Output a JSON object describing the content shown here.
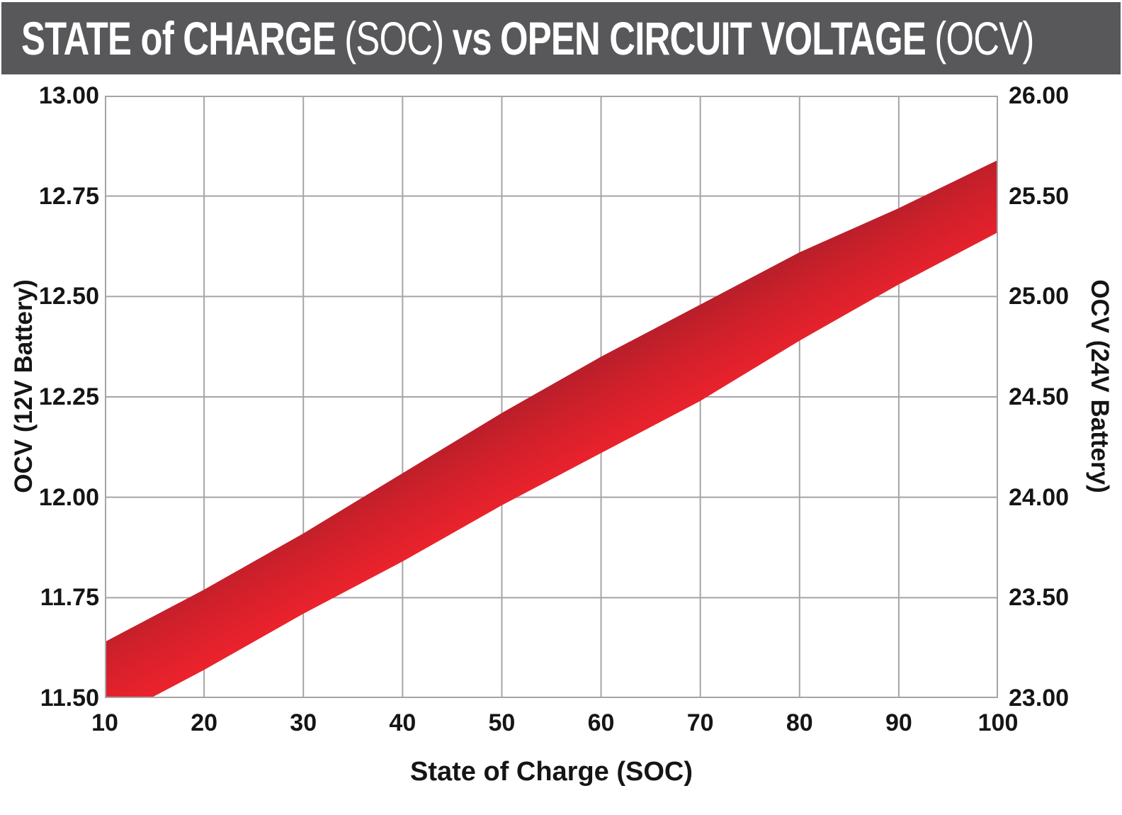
{
  "header": {
    "bar_color": "#58585a",
    "text_color": "#ffffff",
    "segments": [
      {
        "text": "STATE of CHARGE",
        "weight": "bold"
      },
      {
        "text": "(SOC)",
        "weight": "light"
      },
      {
        "text": "vs",
        "weight": "bold"
      },
      {
        "text": "OPEN CIRCUIT VOLTAGE",
        "weight": "bold"
      },
      {
        "text": "(OCV)",
        "weight": "light"
      }
    ]
  },
  "chart_data": {
    "type": "area",
    "title": "STATE of CHARGE (SOC) vs OPEN CIRCUIT VOLTAGE (OCV)",
    "xlabel": "State of Charge (SOC)",
    "ylabel_left": "OCV (12V Battery)",
    "ylabel_right": "OCV (24V Battery)",
    "xlim": [
      10,
      100
    ],
    "ylim_left": [
      11.5,
      13.0
    ],
    "ylim_right": [
      23.0,
      26.0
    ],
    "x_ticks": [
      "10",
      "20",
      "30",
      "40",
      "50",
      "60",
      "70",
      "80",
      "90",
      "100"
    ],
    "y_ticks_left": [
      "13.00",
      "12.75",
      "12.50",
      "12.25",
      "12.00",
      "11.75",
      "11.50"
    ],
    "y_ticks_right": [
      "26.00",
      "25.50",
      "25.00",
      "24.50",
      "24.00",
      "23.50",
      "23.00"
    ],
    "grid": true,
    "grid_color": "#a5a5a7",
    "band": {
      "x": [
        10,
        20,
        30,
        40,
        50,
        60,
        70,
        80,
        90,
        100
      ],
      "upper_12v": [
        11.64,
        11.77,
        11.91,
        12.06,
        12.21,
        12.35,
        12.48,
        12.61,
        12.72,
        12.84
      ],
      "lower_12v": [
        11.44,
        11.57,
        11.71,
        11.84,
        11.98,
        12.11,
        12.24,
        12.39,
        12.53,
        12.66
      ],
      "upper_24v": [
        23.28,
        23.54,
        23.82,
        24.12,
        24.42,
        24.7,
        24.96,
        25.22,
        25.44,
        25.68
      ],
      "lower_24v": [
        22.88,
        23.14,
        23.42,
        23.68,
        23.96,
        24.22,
        24.48,
        24.78,
        25.06,
        25.32
      ],
      "color_top_edge": "#b91f2a",
      "color_mid": "#d2202b",
      "color_bottom_edge": "#ea222c"
    }
  }
}
